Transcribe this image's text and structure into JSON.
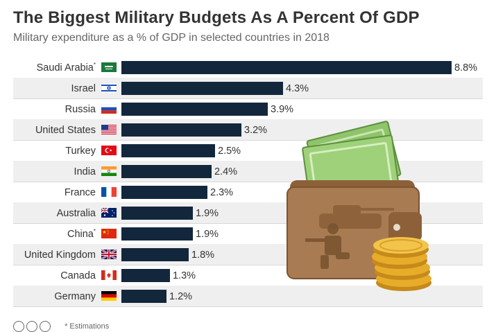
{
  "colors": {
    "bar": "#13273c",
    "stripe": "#efefef",
    "title": "#333333",
    "subtitle": "#666666"
  },
  "footer": {
    "note": "* Estimations",
    "icons": [
      "cc-icon",
      "by-icon",
      "nd-icon"
    ]
  },
  "chart_data": {
    "type": "bar",
    "orientation": "horizontal",
    "title": "The Biggest Military Budgets As A Percent Of GDP",
    "subtitle": "Military expenditure as a % of GDP in selected countries in 2018",
    "categories": [
      "Saudi Arabia",
      "Israel",
      "Russia",
      "United States",
      "Turkey",
      "India",
      "France",
      "Australia",
      "China",
      "United Kingdom",
      "Canada",
      "Germany"
    ],
    "estimated": [
      true,
      false,
      false,
      false,
      false,
      false,
      false,
      false,
      true,
      false,
      false,
      false
    ],
    "flags": [
      "saudi-arabia-flag-icon",
      "israel-flag-icon",
      "russia-flag-icon",
      "united-states-flag-icon",
      "turkey-flag-icon",
      "india-flag-icon",
      "france-flag-icon",
      "australia-flag-icon",
      "china-flag-icon",
      "united-kingdom-flag-icon",
      "canada-flag-icon",
      "germany-flag-icon"
    ],
    "values": [
      8.8,
      4.3,
      3.9,
      3.2,
      2.5,
      2.4,
      2.3,
      1.9,
      1.9,
      1.8,
      1.3,
      1.2
    ],
    "value_labels": [
      "8.8%",
      "4.3%",
      "3.9%",
      "3.2%",
      "2.5%",
      "2.4%",
      "2.3%",
      "1.9%",
      "1.9%",
      "1.8%",
      "1.3%",
      "1.2%"
    ],
    "estimate_marker": "*",
    "unit": "%",
    "xlim": [
      0,
      8.8
    ],
    "grid": false,
    "legend": "none"
  }
}
